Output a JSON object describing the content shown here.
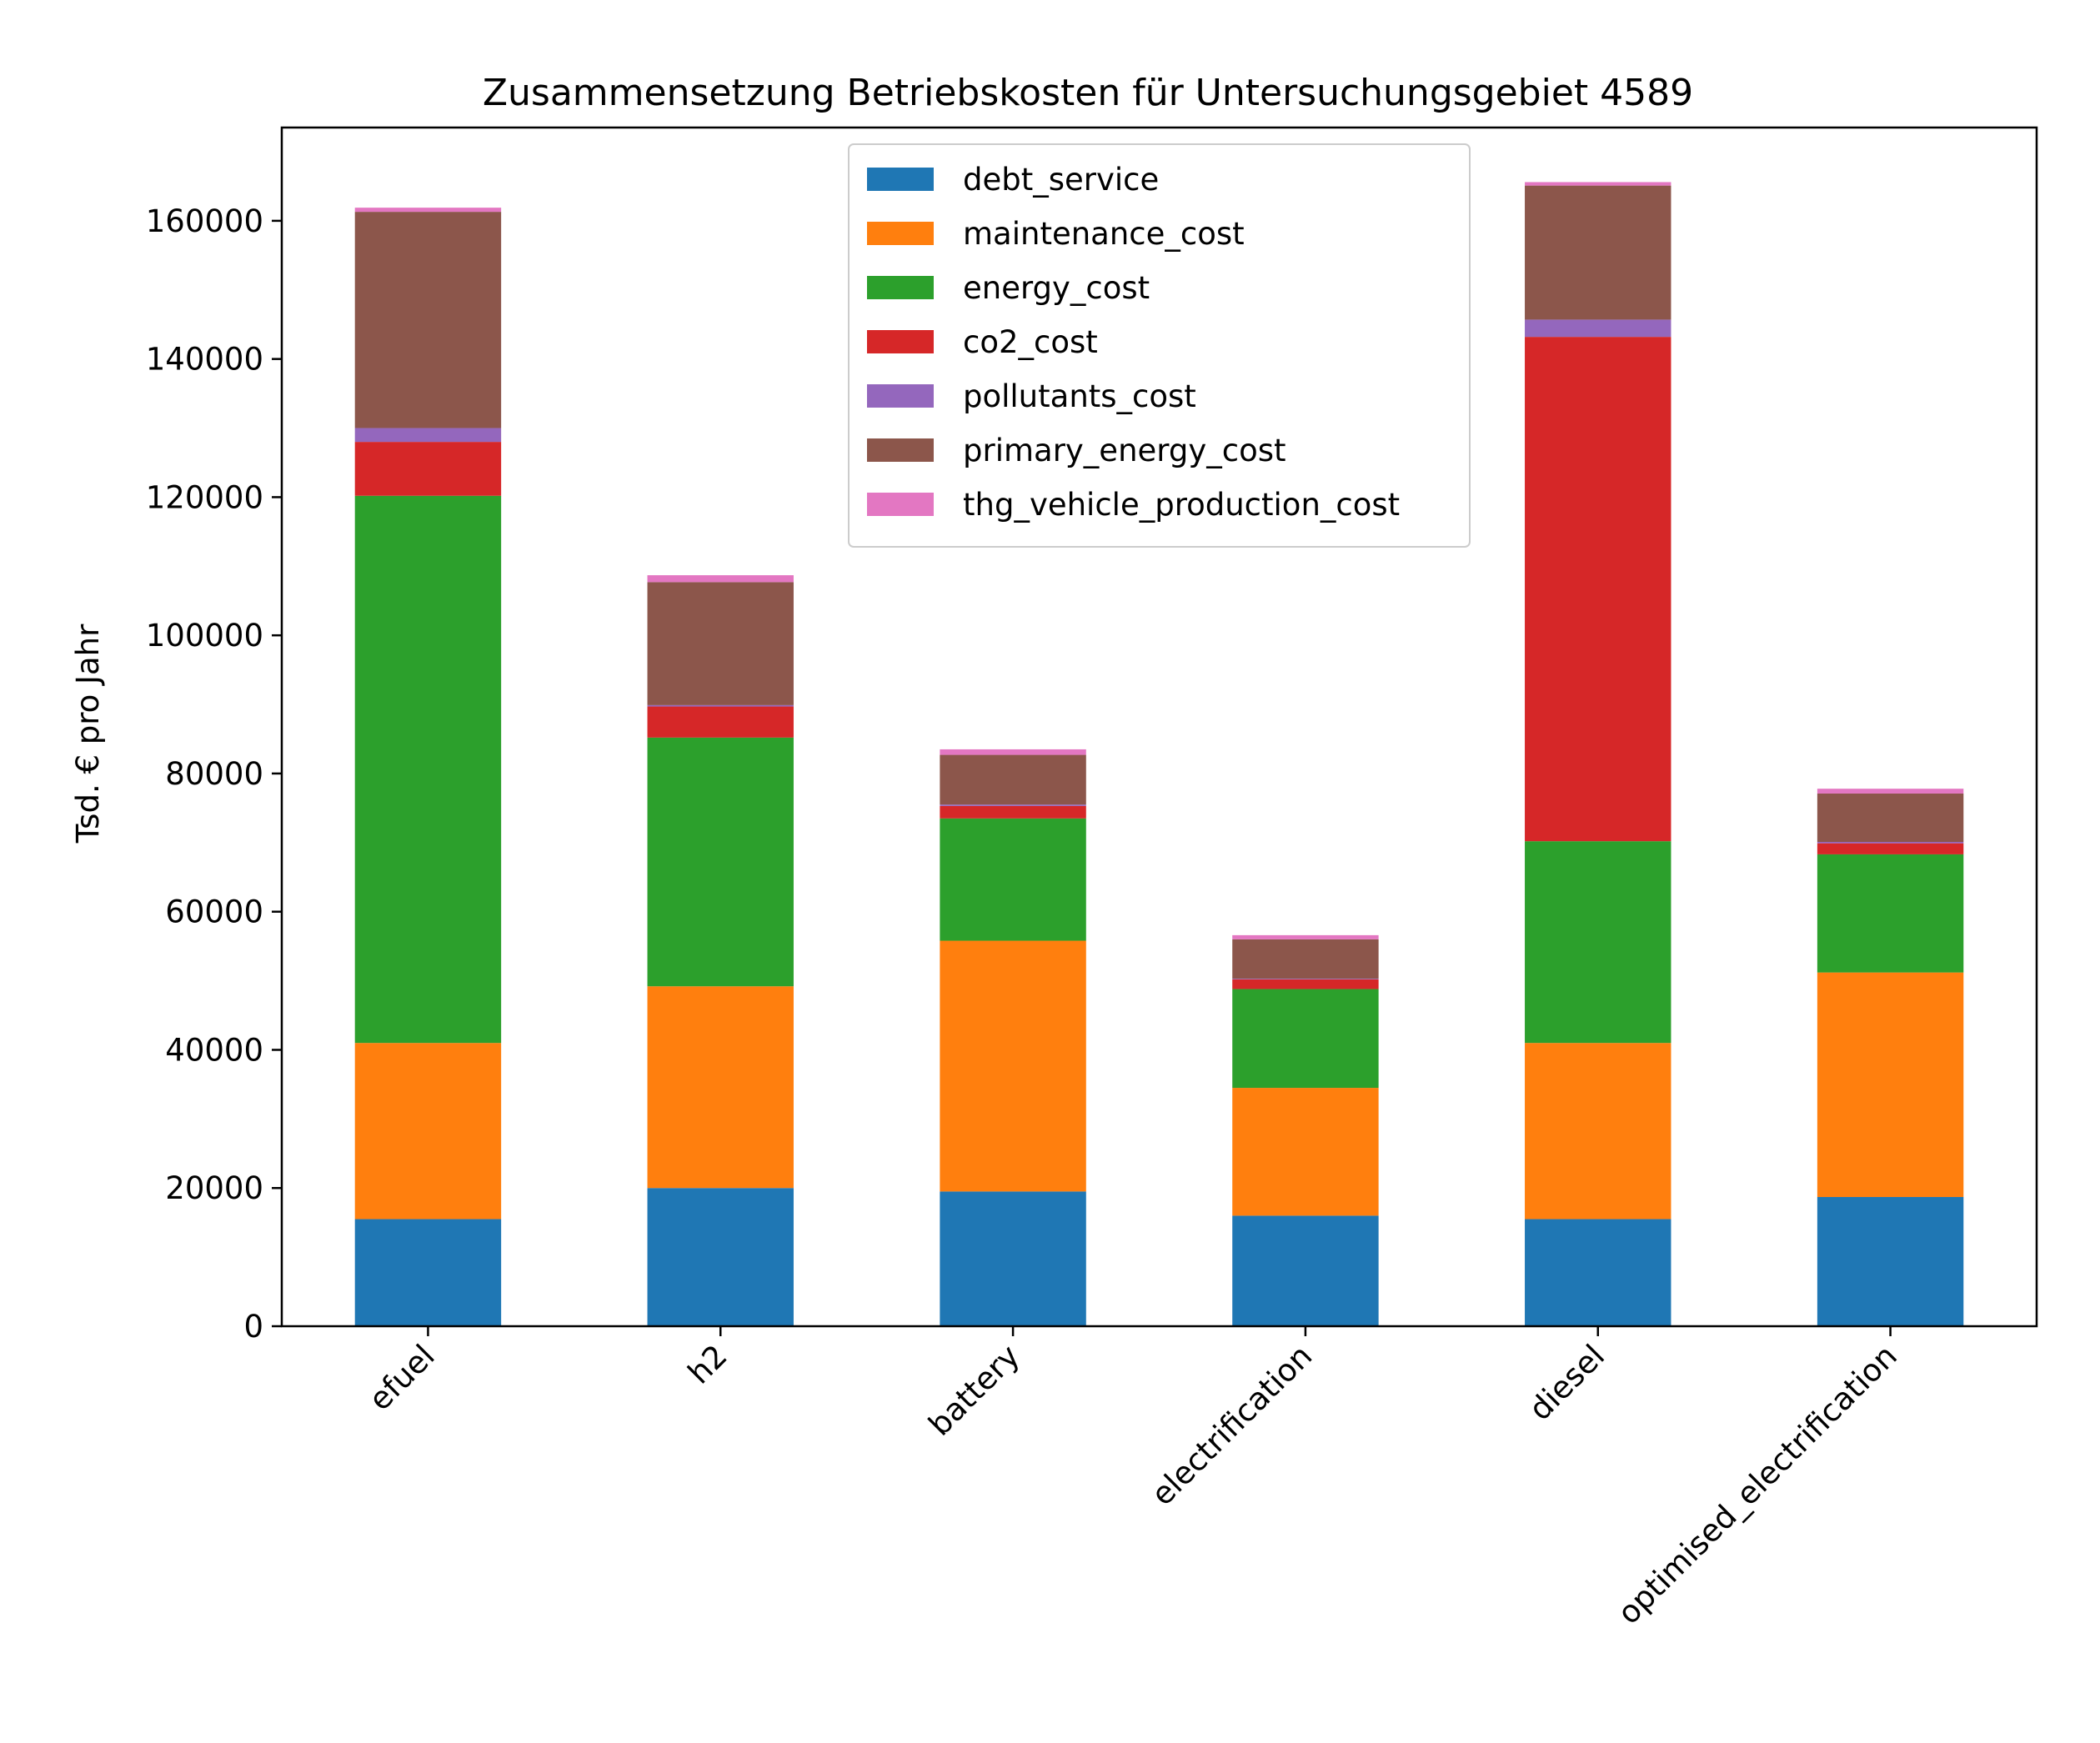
{
  "chart_data": {
    "type": "bar",
    "stacked": true,
    "title": "Zusammensetzung Betriebskosten für Untersuchungsgebiet 4589",
    "xlabel": "",
    "ylabel": "Tsd. € pro Jahr",
    "ylim": [
      0,
      173500
    ],
    "yticks": [
      0,
      20000,
      40000,
      60000,
      80000,
      100000,
      120000,
      140000,
      160000
    ],
    "legend_position": "upper-center",
    "grid": false,
    "categories": [
      "efuel",
      "h2",
      "battery",
      "electrification",
      "diesel",
      "optimised_electrification"
    ],
    "series": [
      {
        "name": "debt_service",
        "color": "#1f77b4",
        "values": [
          15500,
          20000,
          19500,
          16000,
          15500,
          18700
        ]
      },
      {
        "name": "maintenance_cost",
        "color": "#ff7f0e",
        "values": [
          25500,
          29200,
          36300,
          18500,
          25500,
          32500
        ]
      },
      {
        "name": "energy_cost",
        "color": "#2ca02c",
        "values": [
          79200,
          36000,
          17700,
          14300,
          29200,
          17100
        ]
      },
      {
        "name": "co2_cost",
        "color": "#d62728",
        "values": [
          7800,
          4500,
          1800,
          1400,
          73000,
          1600
        ]
      },
      {
        "name": "pollutants_cost",
        "color": "#9467bd",
        "values": [
          2000,
          200,
          200,
          100,
          2500,
          200
        ]
      },
      {
        "name": "primary_energy_cost",
        "color": "#8c564b",
        "values": [
          31300,
          17800,
          7200,
          5700,
          19400,
          7000
        ]
      },
      {
        "name": "thg_vehicle_production_cost",
        "color": "#e377c2",
        "values": [
          600,
          1000,
          800,
          600,
          500,
          700
        ]
      }
    ]
  }
}
